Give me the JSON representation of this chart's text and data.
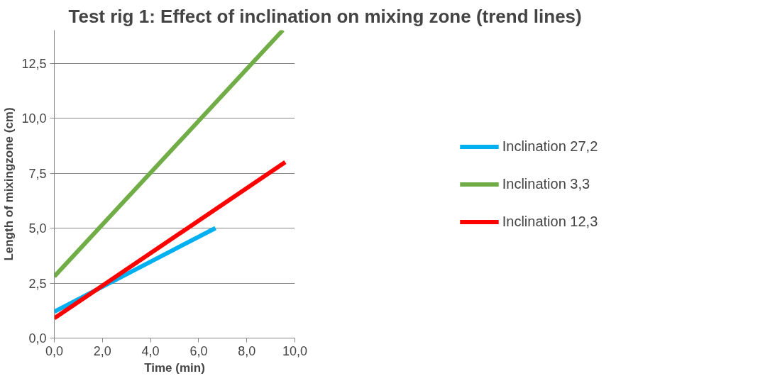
{
  "chart_data": {
    "type": "line",
    "title": "Test rig 1: Effect of inclination on mixing zone (trend lines)",
    "xlabel": "Time (min)",
    "ylabel": "Length of mixingzone (cm)",
    "series": [
      {
        "name": "Inclination 27,2",
        "color": "#00b0f0",
        "x": [
          0,
          6.7
        ],
        "values": [
          1.2,
          5.0
        ]
      },
      {
        "name": "Inclination 3,3",
        "color": "#70ad47",
        "x": [
          0,
          9.5
        ],
        "values": [
          2.8,
          14.0
        ]
      },
      {
        "name": "Inclination 12,3",
        "color": "#ff0000",
        "x": [
          0,
          9.6
        ],
        "values": [
          0.9,
          8.0
        ]
      }
    ],
    "xlim": [
      0,
      10
    ],
    "ylim": [
      0,
      14
    ],
    "xticks": [
      {
        "value": 0,
        "label": "0,0"
      },
      {
        "value": 2,
        "label": "2,0"
      },
      {
        "value": 4,
        "label": "4,0"
      },
      {
        "value": 6,
        "label": "6,0"
      },
      {
        "value": 8,
        "label": "8,0"
      },
      {
        "value": 10,
        "label": "10,0"
      }
    ],
    "yticks": [
      {
        "value": 0,
        "label": "0,0"
      },
      {
        "value": 2.5,
        "label": "2,5"
      },
      {
        "value": 5,
        "label": "5,0"
      },
      {
        "value": 7.5,
        "label": "7,5"
      },
      {
        "value": 10,
        "label": "10,0"
      },
      {
        "value": 12.5,
        "label": "12,5"
      }
    ],
    "grid": "y",
    "legend": "right",
    "marker": "none",
    "line_style": "solid"
  }
}
